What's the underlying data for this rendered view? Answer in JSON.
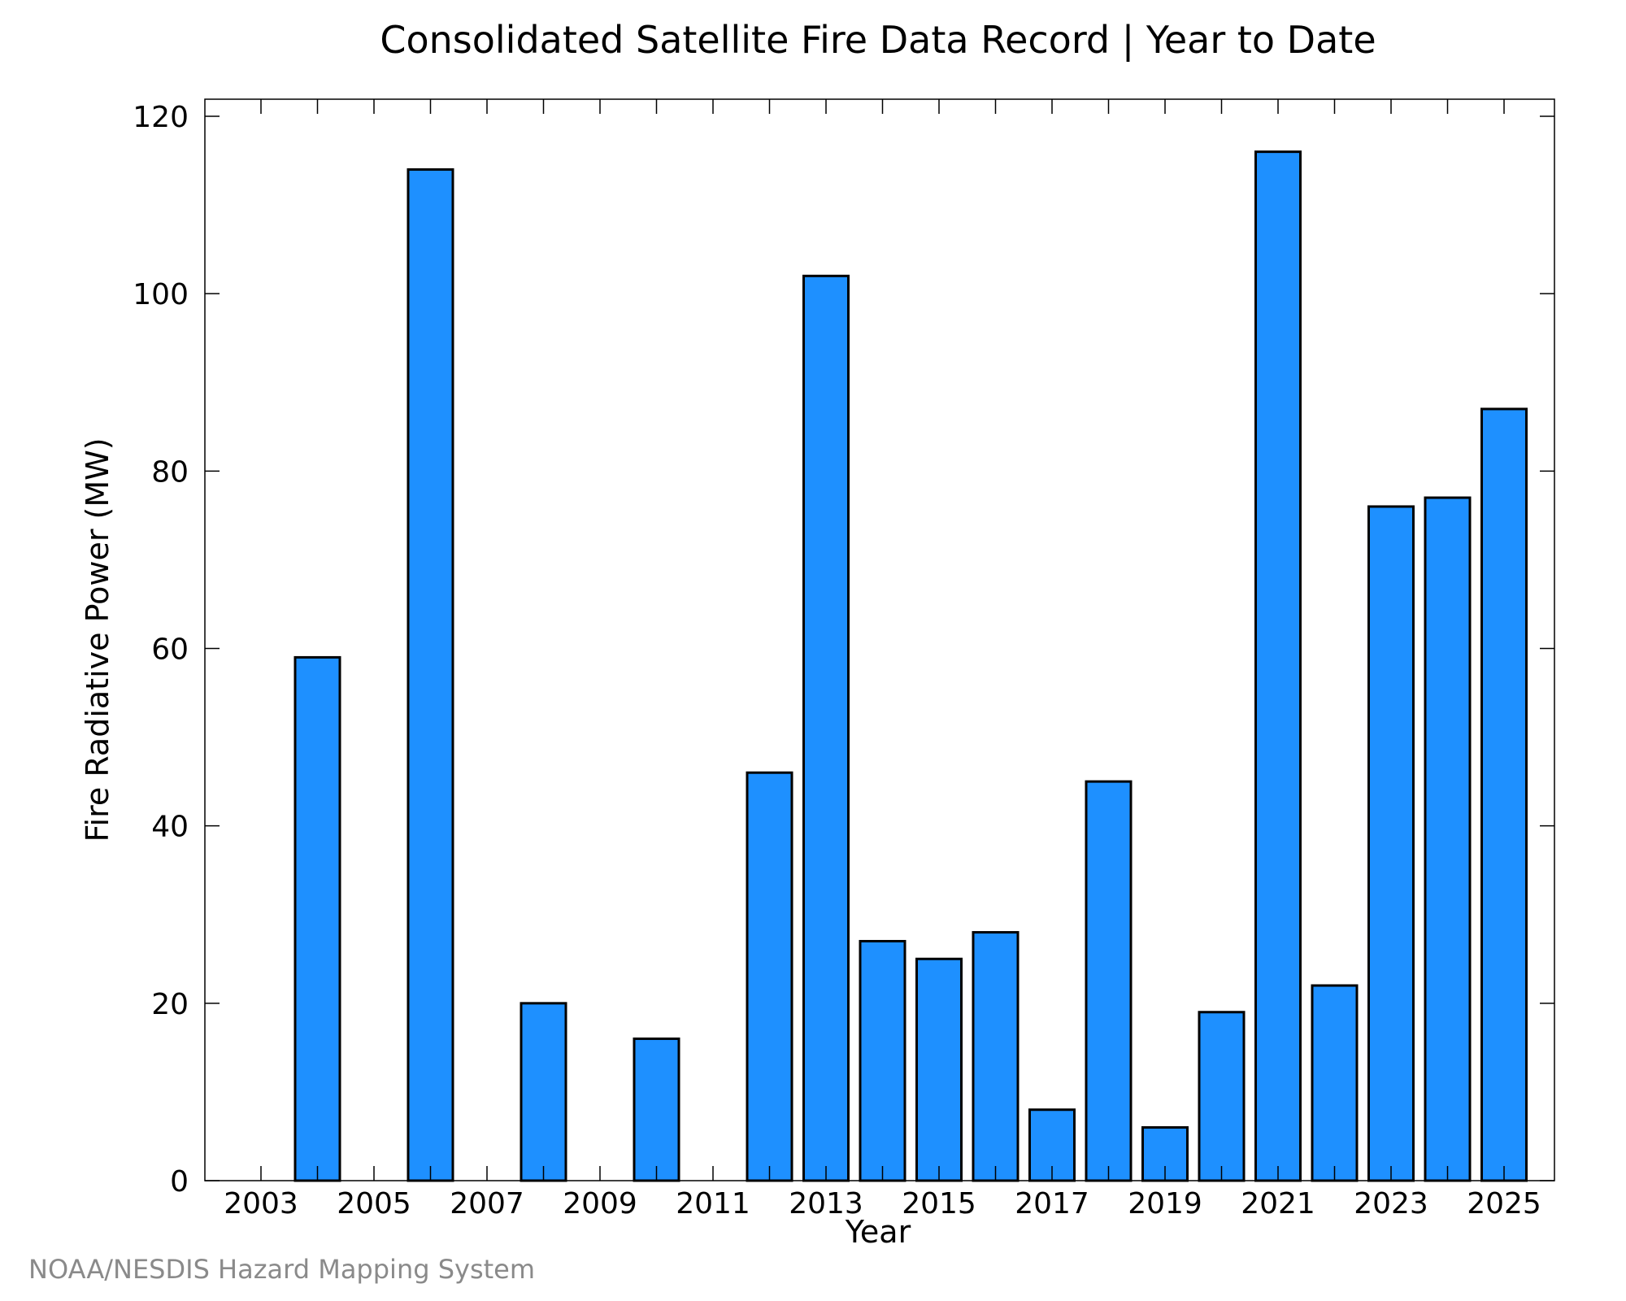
{
  "chart_data": {
    "type": "bar",
    "title": "Consolidated Satellite Fire Data Record | Year to Date",
    "xlabel": "Year",
    "ylabel": "Fire Radiative Power (MW)",
    "categories": [
      "2003",
      "2004",
      "2005",
      "2006",
      "2007",
      "2008",
      "2009",
      "2010",
      "2011",
      "2012",
      "2013",
      "2014",
      "2015",
      "2016",
      "2017",
      "2018",
      "2019",
      "2020",
      "2021",
      "2022",
      "2023",
      "2024",
      "2025"
    ],
    "values": [
      0,
      59,
      0,
      114,
      0,
      20,
      0,
      16,
      0,
      46,
      102,
      27,
      25,
      28,
      8,
      45,
      6,
      19,
      116,
      22,
      76,
      77,
      87
    ],
    "x_tick_labels": [
      "2003",
      "2005",
      "2007",
      "2009",
      "2011",
      "2013",
      "2015",
      "2017",
      "2019",
      "2021",
      "2023",
      "2025"
    ],
    "y_ticks": [
      "0",
      "20",
      "40",
      "60",
      "80",
      "100",
      "120"
    ],
    "ylim": [
      0,
      120
    ],
    "grid": false,
    "bar_color": "#1e90ff",
    "bar_edge_color": "#000000"
  },
  "credit": "NOAA/NESDIS Hazard Mapping System"
}
